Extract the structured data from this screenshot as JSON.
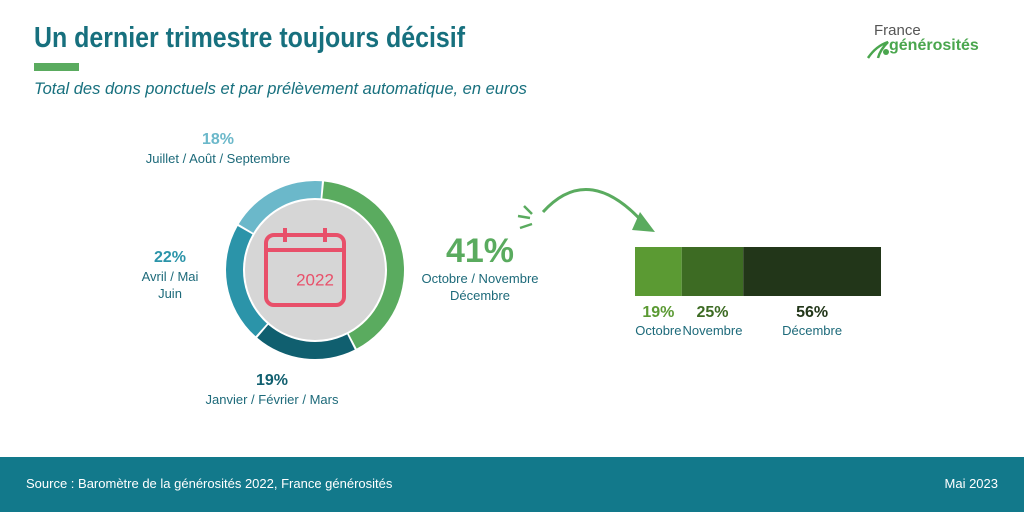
{
  "header": {
    "title": "Un dernier trimestre toujours décisif",
    "subtitle": "Total des dons ponctuels et par prélèvement automatique, en euros"
  },
  "logo": {
    "line1": "France",
    "line2": "générosités"
  },
  "footer": {
    "source": "Source : Baromètre de la générosités 2022, France générosités",
    "date": "Mai 2023"
  },
  "chart_data": [
    {
      "type": "pie",
      "center_label": "2022",
      "categories": [
        "Octobre / Novembre\nDécembre",
        "Janvier / Février / Mars",
        "Avril / Mai\nJuin",
        "Juillet / Août / Septembre"
      ],
      "values": [
        41,
        19,
        22,
        18
      ],
      "value_labels": [
        "41%",
        "19%",
        "22%",
        "18%"
      ],
      "colors": [
        "#5aab5f",
        "#105f6f",
        "#2b94a9",
        "#6bb8ca"
      ]
    },
    {
      "type": "bar",
      "orientation": "horizontal",
      "stacked": true,
      "xlim": [
        0,
        100
      ],
      "series": [
        {
          "name": "Octobre",
          "color": "#5b9a33",
          "values": [
            19
          ],
          "value_labels": [
            "19%"
          ]
        },
        {
          "name": "Novembre",
          "color": "#3d6b23",
          "values": [
            25
          ],
          "value_labels": [
            "25%"
          ]
        },
        {
          "name": "Décembre",
          "color": "#223619",
          "values": [
            56
          ],
          "value_labels": [
            "56%"
          ]
        }
      ]
    }
  ]
}
